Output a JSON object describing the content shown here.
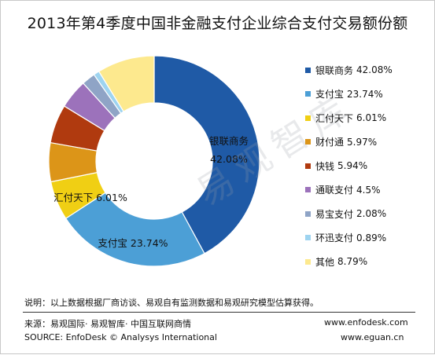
{
  "chart_data": {
    "type": "pie",
    "title": "2013年第4季度中国非金融支付企业综合支付交易额份额",
    "categories": [
      "银联商务",
      "支付宝",
      "汇付天下",
      "财付通",
      "快钱",
      "通联支付",
      "易宝支付",
      "环迅支付",
      "其他"
    ],
    "values": [
      42.08,
      23.74,
      6.01,
      5.97,
      5.94,
      4.5,
      2.08,
      0.89,
      8.79
    ],
    "value_labels": [
      "42.08%",
      "23.74%",
      "6.01%",
      "5.97%",
      "5.94%",
      "4.5%",
      "2.08%",
      "0.89%",
      "8.79%"
    ],
    "colors": [
      "#1f5aa6",
      "#4c9fd6",
      "#f0cf14",
      "#dc9518",
      "#b03a0f",
      "#9c72bb",
      "#8fa4c6",
      "#9ed4f0",
      "#fde98e"
    ],
    "donut": true,
    "legend_position": "right"
  },
  "notes": {
    "explanation": "说明：以上数据根据厂商访谈、易观自有监测数据和易观研究模型估算获得。",
    "source_cn": "来源：易观国际· 易观智库· 中国互联网商情",
    "source_en": "SOURCE: EnfoDesk © Analysys International",
    "url_1": "www.enfodesk.com",
    "url_2": "www.eguan.cn"
  },
  "watermark": "易观智库"
}
